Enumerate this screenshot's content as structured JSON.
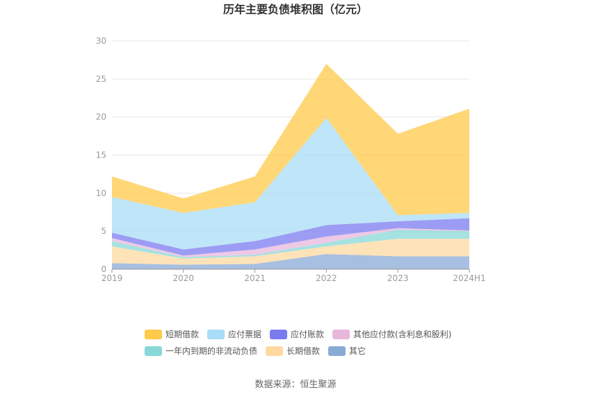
{
  "chart_data": {
    "type": "area",
    "stacked": true,
    "title": "历年主要负债堆积图（亿元）",
    "xlabel": "",
    "ylabel": "",
    "categories": [
      "2019",
      "2020",
      "2021",
      "2022",
      "2023",
      "2024H1"
    ],
    "ylim": [
      0,
      30
    ],
    "yticks": [
      "0",
      "5",
      "10",
      "15",
      "20",
      "25",
      "30"
    ],
    "grid": true,
    "legend_position": "bottom",
    "series": [
      {
        "name": "其它",
        "color": "#8aaad6",
        "values": [
          0.8,
          0.6,
          0.7,
          2.0,
          1.7,
          1.7
        ]
      },
      {
        "name": "长期借款",
        "color": "#ffd9a0",
        "values": [
          2.2,
          0.8,
          1.0,
          1.0,
          2.3,
          2.3
        ]
      },
      {
        "name": "一年内到期的非流动负债",
        "color": "#88d8d8",
        "values": [
          0.7,
          0.2,
          0.2,
          0.5,
          1.2,
          1.0
        ]
      },
      {
        "name": "其他应付款(含利息和股利)",
        "color": "#e8b7dc",
        "values": [
          0.4,
          0.2,
          0.7,
          0.8,
          0.2,
          0.1
        ]
      },
      {
        "name": "应付账款",
        "color": "#7b7bf0",
        "values": [
          0.7,
          0.8,
          1.1,
          1.5,
          0.9,
          1.6
        ]
      },
      {
        "name": "应付票据",
        "color": "#a9dcf6",
        "values": [
          4.7,
          4.8,
          5.1,
          14.1,
          0.8,
          0.7
        ]
      },
      {
        "name": "短期借款",
        "color": "#ffc94a",
        "values": [
          2.7,
          1.9,
          3.4,
          7.1,
          10.7,
          13.7
        ]
      }
    ],
    "legend_order": [
      "短期借款",
      "应付票据",
      "应付账款",
      "其他应付款(含利息和股利)",
      "一年内到期的非流动负债",
      "长期借款",
      "其它"
    ]
  },
  "footer": {
    "source": "数据来源：恒生聚源"
  }
}
